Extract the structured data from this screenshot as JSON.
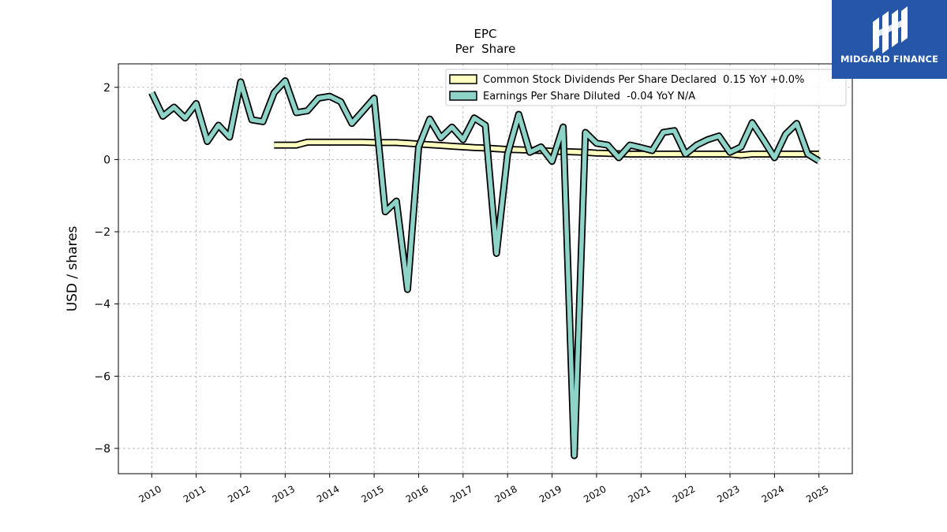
{
  "chart_data": {
    "type": "line",
    "title": "EPC",
    "subtitle": "Per  Share",
    "ylabel": "USD / shares",
    "xlabel": "",
    "xlim": [
      2009.25,
      2025.75
    ],
    "ylim": [
      -8.7,
      2.65
    ],
    "x_ticks": [
      2010,
      2011,
      2012,
      2013,
      2014,
      2015,
      2016,
      2017,
      2018,
      2019,
      2020,
      2021,
      2022,
      2023,
      2024,
      2025
    ],
    "x_tick_labels": [
      "2010",
      "2011",
      "2012",
      "2013",
      "2014",
      "2015",
      "2016",
      "2017",
      "2018",
      "2019",
      "2020",
      "2021",
      "2022",
      "2023",
      "2024",
      "2025"
    ],
    "y_ticks": [
      2,
      0,
      -2,
      -4,
      -6,
      -8
    ],
    "y_tick_labels": [
      "2",
      "0",
      "−2",
      "−4",
      "−6",
      "−8"
    ],
    "grid": true,
    "legend_position": "top-right",
    "series": [
      {
        "name": "Common Stock Dividends Per Share Declared  0.15 YoY +0.0%",
        "color": "#ffffbf",
        "x": [
          2012.75,
          2013.0,
          2013.25,
          2013.5,
          2013.75,
          2014.0,
          2014.25,
          2014.5,
          2014.75,
          2015.0,
          2015.25,
          2015.5,
          2015.75,
          2016.0,
          2016.25,
          2016.5,
          2016.75,
          2017.0,
          2017.25,
          2017.5,
          2017.75,
          2018.0,
          2018.25,
          2018.5,
          2018.75,
          2019.0,
          2019.25,
          2019.5,
          2019.75,
          2020.0,
          2020.25,
          2020.5,
          2020.75,
          2021.0,
          2021.25,
          2021.5,
          2021.75,
          2022.0,
          2022.25,
          2022.5,
          2022.75,
          2023.0,
          2023.25,
          2023.5,
          2023.75,
          2024.0,
          2024.25,
          2024.5,
          2024.75,
          2025.0
        ],
        "values": [
          0.4,
          0.4,
          0.4,
          0.48,
          0.48,
          0.48,
          0.48,
          0.48,
          0.48,
          0.47,
          0.47,
          0.47,
          0.45,
          0.43,
          0.41,
          0.39,
          0.37,
          0.35,
          0.33,
          0.32,
          0.3,
          0.28,
          0.27,
          0.26,
          0.25,
          0.23,
          0.22,
          0.21,
          0.2,
          0.18,
          0.17,
          0.16,
          0.15,
          0.15,
          0.15,
          0.15,
          0.15,
          0.15,
          0.15,
          0.15,
          0.15,
          0.15,
          0.12,
          0.15,
          0.15,
          0.15,
          0.15,
          0.15,
          0.15,
          0.15
        ]
      },
      {
        "name": "Earnings Per Share Diluted  -0.04 YoY N/A",
        "color": "#8dd3c7",
        "x": [
          2010.0,
          2010.25,
          2010.5,
          2010.75,
          2011.0,
          2011.25,
          2011.5,
          2011.75,
          2012.0,
          2012.25,
          2012.5,
          2012.75,
          2013.0,
          2013.25,
          2013.5,
          2013.75,
          2014.0,
          2014.25,
          2014.5,
          2014.75,
          2015.0,
          2015.25,
          2015.5,
          2015.75,
          2016.0,
          2016.25,
          2016.5,
          2016.75,
          2017.0,
          2017.25,
          2017.5,
          2017.75,
          2018.0,
          2018.25,
          2018.5,
          2018.75,
          2019.0,
          2019.25,
          2019.5,
          2019.75,
          2020.0,
          2020.25,
          2020.5,
          2020.75,
          2021.0,
          2021.25,
          2021.5,
          2021.75,
          2022.0,
          2022.25,
          2022.5,
          2022.75,
          2023.0,
          2023.25,
          2023.5,
          2023.75,
          2024.0,
          2024.25,
          2024.5,
          2024.75,
          2025.0
        ],
        "values": [
          1.85,
          1.2,
          1.45,
          1.15,
          1.55,
          0.5,
          0.95,
          0.62,
          2.15,
          1.1,
          1.05,
          1.85,
          2.18,
          1.3,
          1.35,
          1.7,
          1.75,
          1.6,
          1.0,
          1.35,
          1.7,
          -1.45,
          -1.15,
          -3.6,
          0.35,
          1.12,
          0.6,
          0.9,
          0.55,
          1.15,
          0.95,
          -2.6,
          0.15,
          1.25,
          0.2,
          0.35,
          -0.05,
          0.9,
          -8.2,
          0.75,
          0.45,
          0.4,
          0.05,
          0.4,
          0.33,
          0.25,
          0.75,
          0.8,
          0.15,
          0.4,
          0.55,
          0.65,
          0.2,
          0.35,
          1.02,
          0.55,
          0.05,
          0.7,
          1.0,
          0.15,
          -0.04
        ]
      }
    ]
  },
  "logo": {
    "text": "MIDGARD FINANCE",
    "color": "#2556a8"
  }
}
